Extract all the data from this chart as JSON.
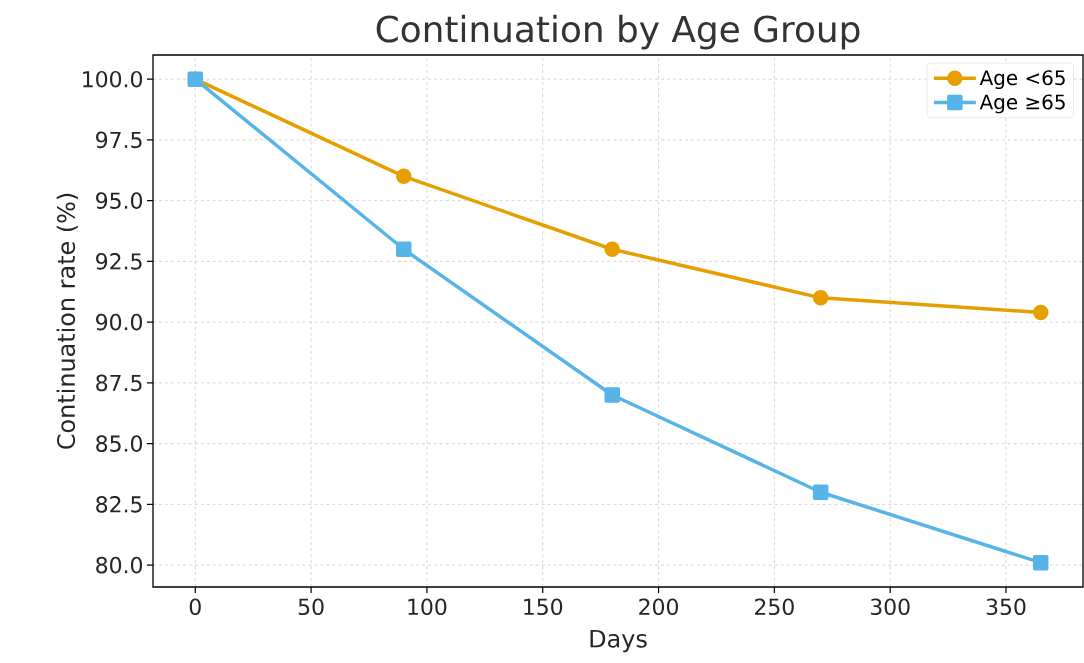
{
  "chart_data": {
    "type": "line",
    "title": "Continuation by Age Group",
    "xlabel": "Days",
    "ylabel": "Continuation rate (%)",
    "x": [
      0,
      90,
      180,
      270,
      365
    ],
    "series": [
      {
        "name": "Age <65",
        "color": "#e69f00",
        "marker": "circle",
        "values": [
          100,
          96,
          93,
          91,
          90.4
        ]
      },
      {
        "name": "Age ≥65",
        "color": "#56b4e9",
        "marker": "square",
        "values": [
          100,
          93,
          87,
          83,
          80.1
        ]
      }
    ],
    "xlim": [
      -18.25,
      383.25
    ],
    "ylim": [
      79.1,
      100.995
    ],
    "xticks": [
      0,
      50,
      100,
      150,
      200,
      250,
      300,
      350
    ],
    "yticks": [
      {
        "value": 80,
        "label": "80.0"
      },
      {
        "value": 82.5,
        "label": "82.5"
      },
      {
        "value": 85,
        "label": "85.0"
      },
      {
        "value": 87.5,
        "label": "87.5"
      },
      {
        "value": 90,
        "label": "90.0"
      },
      {
        "value": 92.5,
        "label": "92.5"
      },
      {
        "value": 95,
        "label": "95.0"
      },
      {
        "value": 97.5,
        "label": "97.5"
      },
      {
        "value": 100,
        "label": "100.0"
      }
    ],
    "grid": true,
    "legend": "top right",
    "line_style": "solid"
  }
}
